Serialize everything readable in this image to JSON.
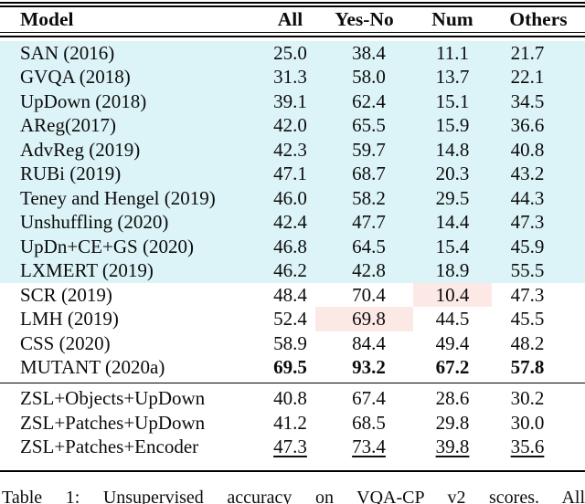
{
  "colors": {
    "cyan_highlight": "#dcf4f7",
    "pink_highlight": "#fce9e6",
    "rule": "#000000",
    "text": "#0c0c0c"
  },
  "table": {
    "headers": {
      "model": "Model",
      "all": "All",
      "yesno": "Yes-No",
      "num": "Num",
      "others": "Others"
    },
    "rows": [
      {
        "model": "SAN (2016)",
        "all": "25.0",
        "yesno": "38.4",
        "num": "11.1",
        "others": "21.7",
        "band": "cyan"
      },
      {
        "model": "GVQA (2018)",
        "all": "31.3",
        "yesno": "58.0",
        "num": "13.7",
        "others": "22.1",
        "band": "cyan"
      },
      {
        "model": "UpDown (2018)",
        "all": "39.1",
        "yesno": "62.4",
        "num": "15.1",
        "others": "34.5",
        "band": "cyan"
      },
      {
        "model": "AReg(2017)",
        "all": "42.0",
        "yesno": "65.5",
        "num": "15.9",
        "others": "36.6",
        "band": "cyan"
      },
      {
        "model": "AdvReg (2019)",
        "all": "42.3",
        "yesno": "59.7",
        "num": "14.8",
        "others": "40.8",
        "band": "cyan"
      },
      {
        "model": "RUBi (2019)",
        "all": "47.1",
        "yesno": "68.7",
        "num": "20.3",
        "others": "43.2",
        "band": "cyan"
      },
      {
        "model": "Teney and Hengel (2019)",
        "all": "46.0",
        "yesno": "58.2",
        "num": "29.5",
        "others": "44.3",
        "band": "cyan"
      },
      {
        "model": "Unshuffling (2020)",
        "all": "42.4",
        "yesno": "47.7",
        "num": "14.4",
        "others": "47.3",
        "band": "cyan"
      },
      {
        "model": "UpDn+CE+GS (2020)",
        "all": "46.8",
        "yesno": "64.5",
        "num": "15.4",
        "others": "45.9",
        "band": "cyan"
      },
      {
        "model": "LXMERT (2019)",
        "all": "46.2",
        "yesno": "42.8",
        "num": "18.9",
        "others": "55.5",
        "band": "cyan"
      },
      {
        "model": "SCR (2019)",
        "all": "48.4",
        "yesno": "70.4",
        "num": "10.4",
        "others": "47.3",
        "pink": [
          "num"
        ]
      },
      {
        "model": "LMH (2019)",
        "all": "52.4",
        "yesno": "69.8",
        "num": "44.5",
        "others": "45.5",
        "pink": [
          "yesno"
        ]
      },
      {
        "model": "CSS (2020)",
        "all": "58.9",
        "yesno": "84.4",
        "num": "49.4",
        "others": "48.2"
      },
      {
        "model": "MUTANT (2020a)",
        "all": "69.5",
        "yesno": "93.2",
        "num": "67.2",
        "others": "57.8",
        "bold_values": true
      },
      {
        "model": "ZSL+Objects+UpDown",
        "all": "40.8",
        "yesno": "67.4",
        "num": "28.6",
        "others": "30.2",
        "section": "zsl"
      },
      {
        "model": "ZSL+Patches+UpDown",
        "all": "41.2",
        "yesno": "68.5",
        "num": "29.8",
        "others": "30.0",
        "section": "zsl"
      },
      {
        "model": "ZSL+Patches+Encoder",
        "all": "47.3",
        "yesno": "73.4",
        "num": "39.8",
        "others": "35.6",
        "section": "zsl",
        "underline_values": true
      }
    ]
  },
  "caption": "Table 1: Unsupervised accuracy on VQA-CP v2 scores. All"
}
